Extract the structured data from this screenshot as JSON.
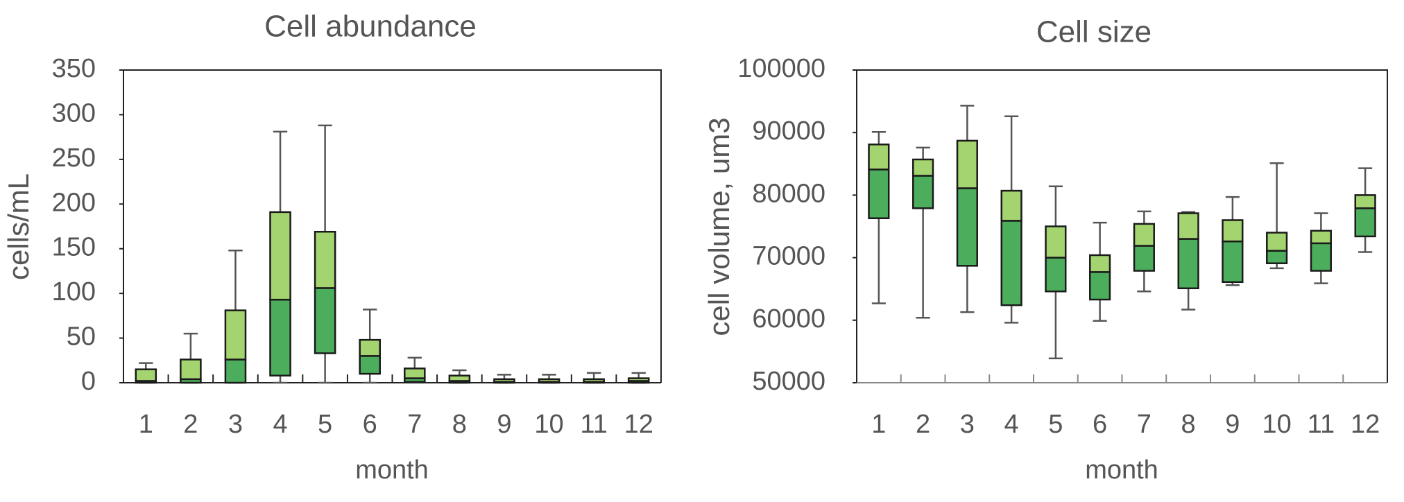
{
  "chart_data": [
    {
      "type": "box",
      "title": "Cell abundance",
      "x_label": "month",
      "y_label": "cells/mL",
      "categories": [
        "1",
        "2",
        "3",
        "4",
        "5",
        "6",
        "7",
        "8",
        "9",
        "10",
        "11",
        "12"
      ],
      "min": [
        0,
        0,
        0,
        0,
        0,
        0,
        0,
        0,
        0,
        0,
        0,
        0
      ],
      "q1": [
        0,
        0,
        0,
        8,
        33,
        10,
        1,
        0,
        0,
        0,
        0,
        0
      ],
      "median": [
        2,
        4,
        26,
        93,
        106,
        30,
        5,
        2,
        1,
        1,
        1,
        2
      ],
      "q3": [
        15,
        26,
        81,
        191,
        169,
        48,
        16,
        8,
        4,
        4,
        4,
        5
      ],
      "max": [
        22,
        55,
        148,
        281,
        288,
        82,
        28,
        14,
        9,
        9,
        11,
        11
      ],
      "upper_color": "#a3d46f",
      "lower_color": "#4cad5c",
      "ylim": [
        0,
        350
      ],
      "yticks": [
        0,
        50,
        100,
        150,
        200,
        250,
        300,
        350
      ]
    },
    {
      "type": "box",
      "title": "Cell size",
      "x_label": "month",
      "y_label": "cell volume, um3",
      "categories": [
        "1",
        "2",
        "3",
        "4",
        "5",
        "6",
        "7",
        "8",
        "9",
        "10",
        "11",
        "12"
      ],
      "min": [
        62700,
        60400,
        61300,
        59600,
        53900,
        59900,
        64600,
        61700,
        65600,
        68300,
        65900,
        70900
      ],
      "q1": [
        76300,
        77900,
        68700,
        62400,
        64600,
        63300,
        67900,
        65100,
        66100,
        69100,
        67900,
        73400
      ],
      "median": [
        84100,
        83100,
        81100,
        75900,
        70000,
        67700,
        71900,
        73000,
        72600,
        71100,
        72300,
        77900
      ],
      "q3": [
        88100,
        85700,
        88700,
        80700,
        75000,
        70400,
        75400,
        77100,
        76000,
        74000,
        74300,
        80000
      ],
      "max": [
        90100,
        87600,
        94300,
        92600,
        81400,
        75600,
        77400,
        77300,
        79700,
        85100,
        77100,
        84300
      ],
      "upper_color": "#a3d46f",
      "lower_color": "#4cad5c",
      "ylim": [
        50000,
        100000
      ],
      "yticks": [
        50000,
        60000,
        70000,
        80000,
        90000,
        100000
      ]
    }
  ]
}
